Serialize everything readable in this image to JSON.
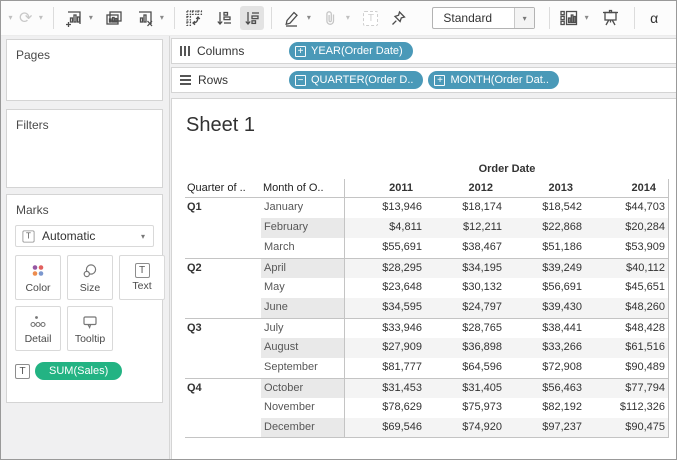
{
  "glyphs": {
    "caret": "▾",
    "undo_redo": "⟳",
    "t": "T"
  },
  "toolbar": {
    "standard_selector": "Standard",
    "edge_fragment": "α"
  },
  "shelves": {
    "columns": {
      "label": "Columns",
      "pills": [
        {
          "prefix": "+",
          "label": "YEAR(Order Date)"
        }
      ]
    },
    "rows": {
      "label": "Rows",
      "pills": [
        {
          "prefix": "−",
          "label": "QUARTER(Order D.."
        },
        {
          "prefix": "+",
          "label": "MONTH(Order Dat.."
        }
      ]
    }
  },
  "sidebar": {
    "pages": {
      "label": "Pages"
    },
    "filters": {
      "label": "Filters"
    },
    "marks": {
      "label": "Marks",
      "mark_type_selector": {
        "icon_glyph": "T",
        "value": "Automatic"
      },
      "buttons": [
        {
          "label": "Color"
        },
        {
          "label": "Size"
        },
        {
          "label": "Text"
        },
        {
          "label": "Detail"
        },
        {
          "label": "Tooltip"
        }
      ],
      "encoding_pill": {
        "icon_glyph": "T",
        "label": "SUM(Sales)"
      }
    }
  },
  "sheet": {
    "title": "Sheet 1",
    "table": {
      "column_group_label": "Order Date",
      "row_headers": [
        "Quarter of ..",
        "Month of O.."
      ],
      "year_columns": [
        "2011",
        "2012",
        "2013",
        "2014"
      ],
      "rows": [
        {
          "quarter": "Q1",
          "month": "January",
          "values": [
            "$13,946",
            "$18,174",
            "$18,542",
            "$44,703"
          ]
        },
        {
          "quarter": "",
          "month": "February",
          "values": [
            "$4,811",
            "$12,211",
            "$22,868",
            "$20,284"
          ]
        },
        {
          "quarter": "",
          "month": "March",
          "values": [
            "$55,691",
            "$38,467",
            "$51,186",
            "$53,909"
          ]
        },
        {
          "quarter": "Q2",
          "month": "April",
          "values": [
            "$28,295",
            "$34,195",
            "$39,249",
            "$40,112"
          ]
        },
        {
          "quarter": "",
          "month": "May",
          "values": [
            "$23,648",
            "$30,132",
            "$56,691",
            "$45,651"
          ]
        },
        {
          "quarter": "",
          "month": "June",
          "values": [
            "$34,595",
            "$24,797",
            "$39,430",
            "$48,260"
          ]
        },
        {
          "quarter": "Q3",
          "month": "July",
          "values": [
            "$33,946",
            "$28,765",
            "$38,441",
            "$48,428"
          ]
        },
        {
          "quarter": "",
          "month": "August",
          "values": [
            "$27,909",
            "$36,898",
            "$33,266",
            "$61,516"
          ]
        },
        {
          "quarter": "",
          "month": "September",
          "values": [
            "$81,777",
            "$64,596",
            "$72,908",
            "$90,489"
          ]
        },
        {
          "quarter": "Q4",
          "month": "October",
          "values": [
            "$31,453",
            "$31,405",
            "$56,463",
            "$77,794"
          ]
        },
        {
          "quarter": "",
          "month": "November",
          "values": [
            "$78,629",
            "$75,973",
            "$82,192",
            "$112,326"
          ]
        },
        {
          "quarter": "",
          "month": "December",
          "values": [
            "$69,546",
            "$74,920",
            "$97,237",
            "$90,475"
          ]
        }
      ]
    }
  },
  "colors": {
    "dimension_pill": "#4A99B8",
    "measure_pill": "#23B383",
    "band_month": "#e9e9e9",
    "band_pane": "#f4f4f4",
    "grid_line": "#c4c4c4"
  }
}
